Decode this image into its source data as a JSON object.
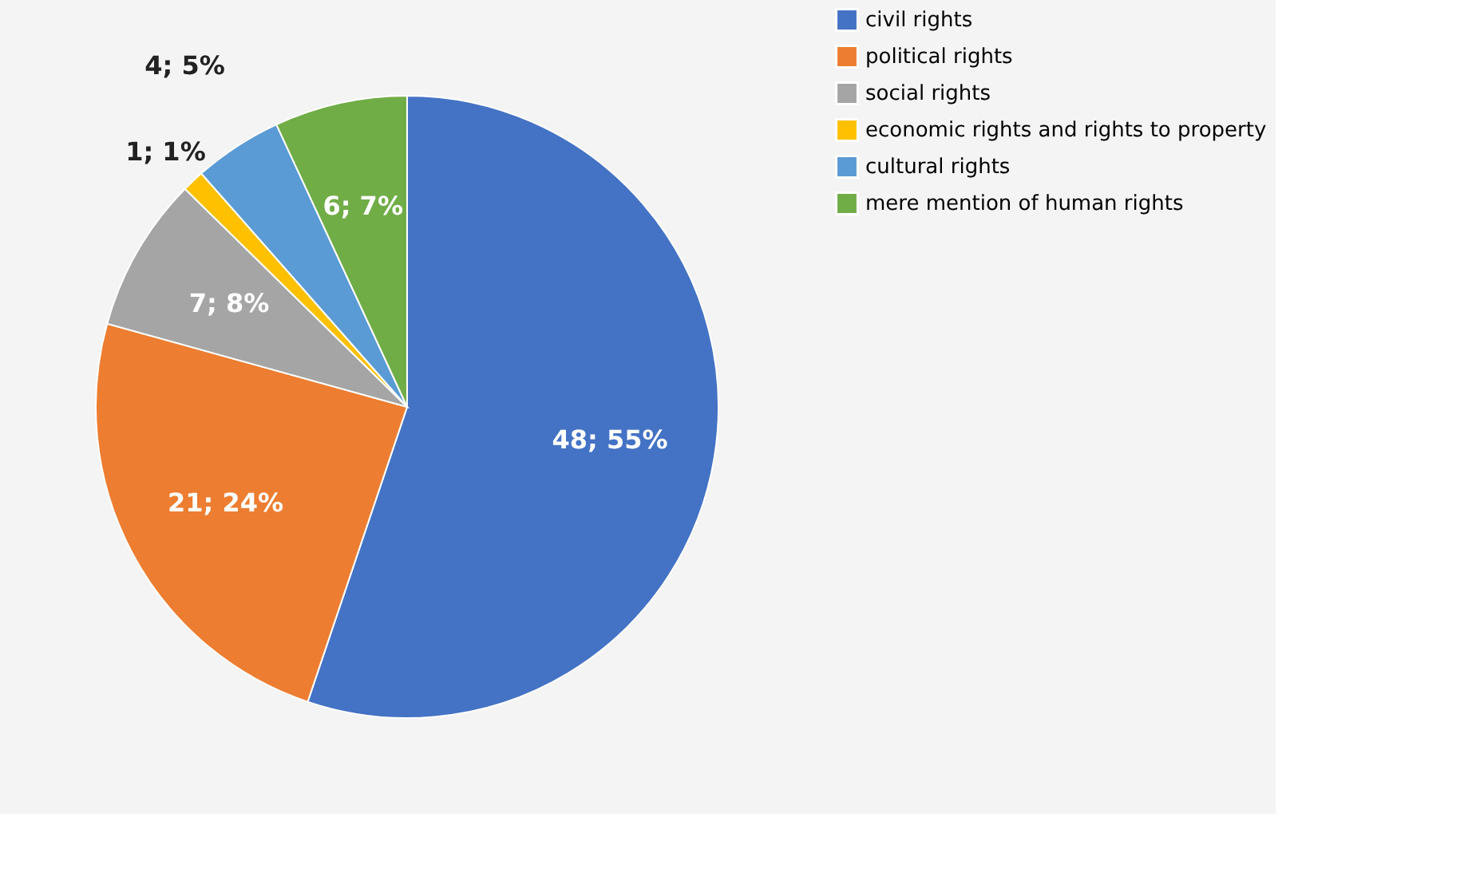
{
  "chart_data": {
    "type": "pie",
    "categories": [
      "civil rights",
      "political rights",
      "social rights",
      "economic rights and rights to property",
      "cultural rights",
      "mere mention of human rights"
    ],
    "values": [
      48,
      21,
      7,
      1,
      4,
      6
    ],
    "colors": [
      "#4472c4",
      "#ed7d31",
      "#a5a5a5",
      "#ffc000",
      "#5b9bd5",
      "#70ad47"
    ],
    "value_labels": [
      "48; 55%",
      "21; 24%",
      "7; 8%",
      "1; 1%",
      "4; 5%",
      "6; 7%"
    ],
    "legend": "right"
  }
}
